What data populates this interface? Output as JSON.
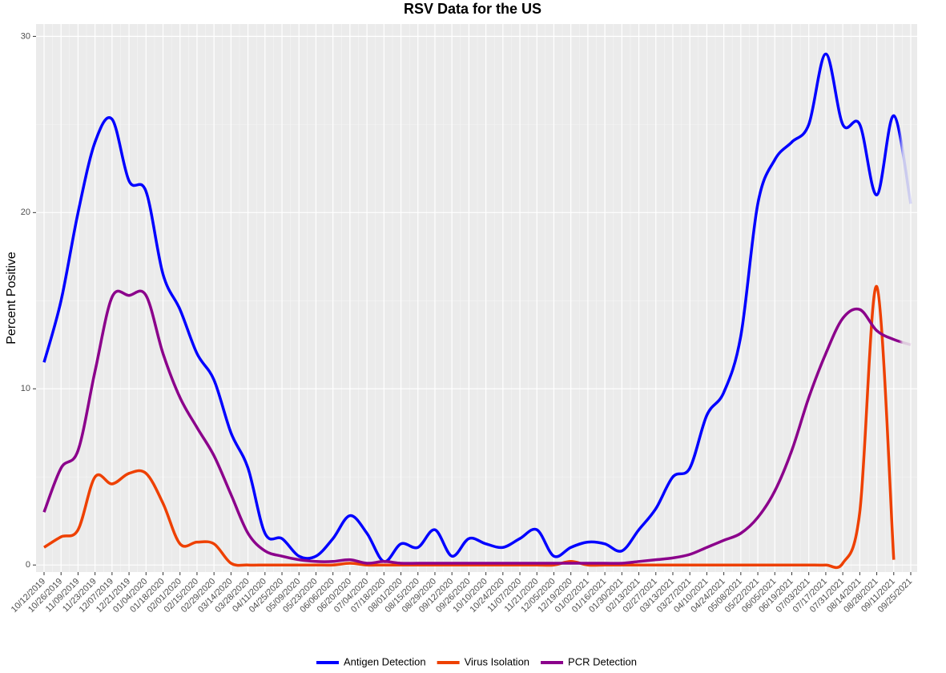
{
  "chart_data": {
    "type": "line",
    "title": "RSV Data for the US",
    "y_label": "Percent Positive",
    "categories": [
      "10/12/2019",
      "10/26/2019",
      "11/09/2019",
      "11/23/2019",
      "12/07/2019",
      "12/21/2019",
      "01/04/2020",
      "01/18/2020",
      "02/01/2020",
      "02/15/2020",
      "02/29/2020",
      "03/14/2020",
      "03/28/2020",
      "04/11/2020",
      "04/25/2020",
      "05/09/2020",
      "05/23/2020",
      "06/06/2020",
      "06/20/2020",
      "07/04/2020",
      "07/18/2020",
      "08/01/2020",
      "08/15/2020",
      "08/29/2020",
      "09/12/2020",
      "09/26/2020",
      "10/10/2020",
      "10/24/2020",
      "11/07/2020",
      "11/21/2020",
      "12/05/2020",
      "12/19/2020",
      "01/02/2021",
      "01/16/2021",
      "01/30/2021",
      "02/13/2021",
      "02/27/2021",
      "03/13/2021",
      "03/27/2021",
      "04/10/2021",
      "04/24/2021",
      "05/08/2021",
      "05/22/2021",
      "06/05/2021",
      "06/19/2021",
      "07/03/2021",
      "07/17/2021",
      "07/31/2021",
      "08/14/2021",
      "08/28/2021",
      "09/11/2021",
      "09/25/2021"
    ],
    "series": [
      {
        "name": "Antigen Detection",
        "color": "#0000ff",
        "values": [
          11.5,
          15,
          20,
          24,
          25.3,
          21.8,
          21.2,
          16.5,
          14.5,
          12,
          10.5,
          7.5,
          5.5,
          1.8,
          1.5,
          0.5,
          0.5,
          1.5,
          2.8,
          1.8,
          0.2,
          1.2,
          1.0,
          2.0,
          0.5,
          1.5,
          1.2,
          1.0,
          1.5,
          2.0,
          0.5,
          1.0,
          1.3,
          1.2,
          0.8,
          2.0,
          3.2,
          5,
          5.5,
          8.5,
          9.8,
          13,
          20.5,
          23,
          24,
          25,
          29,
          25,
          25,
          21,
          25.5,
          20.5
        ]
      },
      {
        "name": "Virus Isolation",
        "color": "#ee4000",
        "values": [
          1.0,
          1.6,
          2.0,
          5.0,
          4.6,
          5.2,
          5.2,
          3.5,
          1.2,
          1.3,
          1.2,
          0.1,
          0,
          0,
          0,
          0,
          0,
          0,
          0.1,
          0,
          0,
          0,
          0,
          0,
          0,
          0,
          0,
          0,
          0,
          0,
          0,
          0.2,
          0,
          0,
          0,
          0,
          0,
          0,
          0,
          0,
          0,
          0,
          0,
          0,
          0,
          0,
          0,
          0.1,
          3,
          15.8,
          0.3,
          null
        ]
      },
      {
        "name": "PCR Detection",
        "color": "#8b008b",
        "values": [
          3.0,
          5.5,
          6.5,
          11,
          15.2,
          15.3,
          15.3,
          12,
          9.5,
          7.8,
          6.2,
          4.0,
          1.8,
          0.8,
          0.5,
          0.3,
          0.2,
          0.2,
          0.3,
          0.1,
          0.2,
          0.1,
          0.1,
          0.1,
          0.1,
          0.1,
          0.1,
          0.1,
          0.1,
          0.1,
          0.1,
          0.1,
          0.1,
          0.1,
          0.1,
          0.2,
          0.3,
          0.4,
          0.6,
          1.0,
          1.4,
          1.8,
          2.7,
          4.2,
          6.5,
          9.5,
          12,
          14,
          14.5,
          13.3,
          12.8,
          12.5
        ]
      }
    ],
    "ylim": [
      -0.4,
      30.7
    ],
    "yticks": [
      0,
      10,
      20,
      30
    ],
    "grid": true,
    "legend": "bottom"
  }
}
